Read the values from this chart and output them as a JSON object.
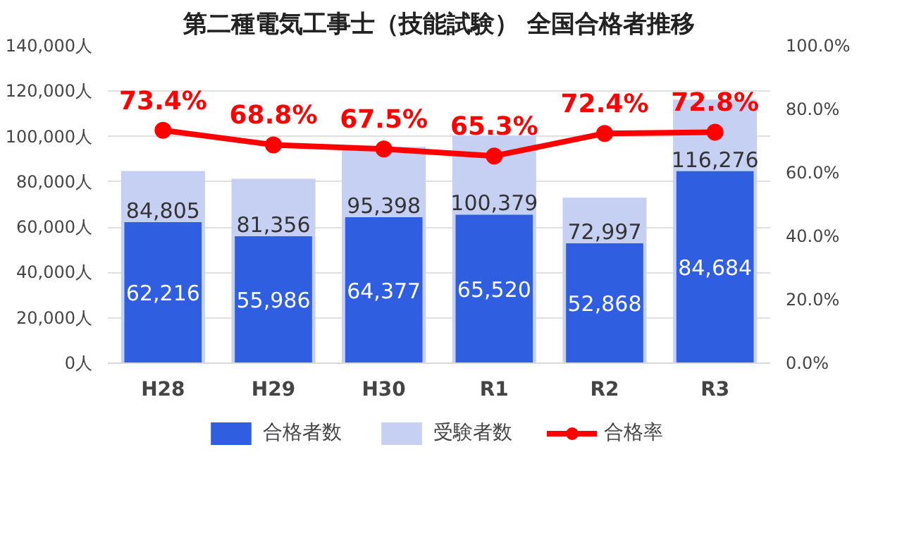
{
  "chart_data": {
    "type": "bar",
    "title": "第二種電気工事士（技能試験） 全国合格者推移",
    "categories": [
      "H28",
      "H29",
      "H30",
      "R1",
      "R2",
      "R3"
    ],
    "series": [
      {
        "name": "合格者数",
        "color": "#2f5fe0",
        "values": [
          62216,
          55986,
          64377,
          65520,
          52868,
          84684
        ],
        "value_labels": [
          "62,216",
          "55,986",
          "64,377",
          "65,520",
          "52,868",
          "84,684"
        ]
      },
      {
        "name": "受験者数",
        "color": "#c5d0f2",
        "values": [
          84805,
          81356,
          95398,
          100379,
          72997,
          116276
        ],
        "value_labels": [
          "84,805",
          "81,356",
          "95,398",
          "100,379",
          "72,997",
          "116,276"
        ]
      },
      {
        "name": "合格率",
        "type": "line",
        "axis": "y2",
        "color": "#ff0000",
        "marker": "circle",
        "values": [
          73.4,
          68.8,
          67.5,
          65.3,
          72.4,
          72.8
        ],
        "value_labels": [
          "73.4%",
          "68.8%",
          "67.5%",
          "65.3%",
          "72.4%",
          "72.8%"
        ]
      }
    ],
    "ylim": [
      0,
      140000
    ],
    "yticks": [
      {
        "value": 0,
        "label": "0人"
      },
      {
        "value": 20000,
        "label": "20,000人"
      },
      {
        "value": 40000,
        "label": "40,000人"
      },
      {
        "value": 60000,
        "label": "60,000人"
      },
      {
        "value": 80000,
        "label": "80,000人"
      },
      {
        "value": 100000,
        "label": "100,000人"
      },
      {
        "value": 120000,
        "label": "120,000人"
      },
      {
        "value": 140000,
        "label": "140,000人"
      }
    ],
    "y2lim": [
      0,
      100
    ],
    "y2ticks": [
      {
        "value": 0,
        "label": "0.0%"
      },
      {
        "value": 20,
        "label": "20.0%"
      },
      {
        "value": 40,
        "label": "40.0%"
      },
      {
        "value": 60,
        "label": "60.0%"
      },
      {
        "value": 80,
        "label": "80.0%"
      },
      {
        "value": 100,
        "label": "100.0%"
      }
    ],
    "data_labels": true,
    "grid": "y",
    "legend": "bottom"
  }
}
